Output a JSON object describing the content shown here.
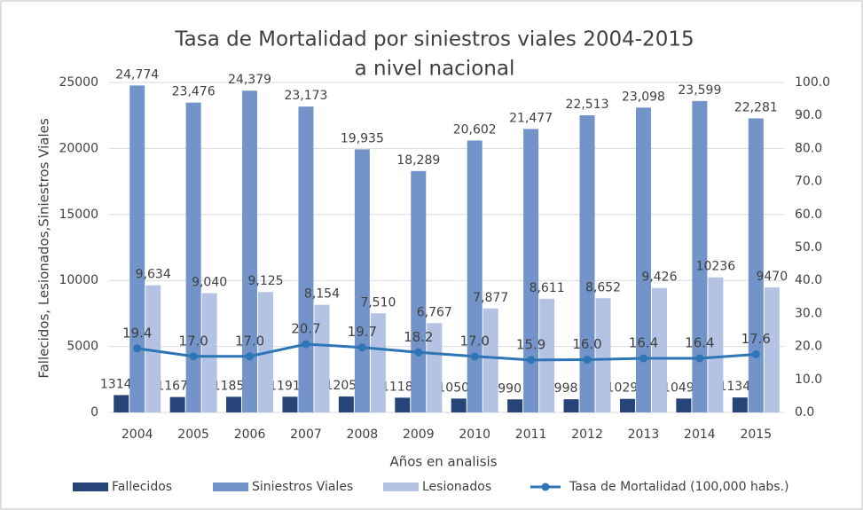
{
  "chart_data": {
    "type": "bar_line",
    "title": "Tasa de Mortalidad por siniestros viales 2004-2015",
    "subtitle": "a nivel nacional",
    "x_label": "Años en analisis",
    "y_label": "Fallecidos, Lesionados,Siniestros Viales",
    "categories": [
      "2004",
      "2005",
      "2006",
      "2007",
      "2008",
      "2009",
      "2010",
      "2011",
      "2012",
      "2013",
      "2014",
      "2015"
    ],
    "series": [
      {
        "name": "Fallecidos",
        "type": "bar",
        "color": "#264478",
        "values": [
          1314,
          1167,
          1185,
          1191,
          1205,
          1118,
          1050,
          990,
          998,
          1029,
          1049,
          1134
        ]
      },
      {
        "name": "Siniestros Viales",
        "type": "bar",
        "color": "#7394c8",
        "values": [
          24774,
          23476,
          24379,
          23173,
          19935,
          18289,
          20602,
          21477,
          22513,
          23098,
          23599,
          22281
        ],
        "value_labels": [
          "24,774",
          "23,476",
          "24,379",
          "23,173",
          "19,935",
          "18,289",
          "20,602",
          "21,477",
          "22,513",
          "23,098",
          "23,599",
          "22,281"
        ]
      },
      {
        "name": "Lesionados",
        "type": "bar",
        "color": "#b4c3e3",
        "values": [
          9634,
          9040,
          9125,
          8154,
          7510,
          6767,
          7877,
          8611,
          8652,
          9426,
          10236,
          9470
        ],
        "value_labels": [
          "9,634",
          "9,040",
          "9,125",
          "8,154",
          "7,510",
          "6,767",
          "7,877",
          "8,611",
          "8,652",
          "9,426",
          "10236",
          "9470"
        ]
      },
      {
        "name": "Tasa de Mortalidad (100,000 habs.)",
        "type": "line",
        "axis": "y2",
        "color": "#2e75b6",
        "values": [
          19.4,
          17.0,
          17.0,
          20.7,
          19.7,
          18.2,
          17.0,
          15.9,
          16.0,
          16.4,
          16.4,
          17.6
        ],
        "value_labels": [
          "19.4",
          "17.0",
          "17.0",
          "20.7",
          "19.7",
          "18.2",
          "17.0",
          "15.9",
          "16.0",
          "16.4",
          "16.4",
          "17.6"
        ]
      }
    ],
    "ylim": [
      0,
      25000
    ],
    "yticks": [
      0,
      5000,
      10000,
      15000,
      20000,
      25000
    ],
    "y2lim": [
      0,
      100
    ],
    "y2ticks": [
      {
        "value": 0,
        "label": "0.0"
      },
      {
        "value": 10,
        "label": "10.0"
      },
      {
        "value": 20,
        "label": "20.0"
      },
      {
        "value": 30,
        "label": "30.0"
      },
      {
        "value": 40,
        "label": "40.0"
      },
      {
        "value": 50,
        "label": "50.0"
      },
      {
        "value": 60,
        "label": "60.0"
      },
      {
        "value": 70,
        "label": "70.0"
      },
      {
        "value": 80,
        "label": "80.0"
      },
      {
        "value": 90,
        "label": "90.0"
      },
      {
        "value": 100,
        "label": "100.0"
      }
    ],
    "grid": true,
    "legend": "bottom"
  }
}
